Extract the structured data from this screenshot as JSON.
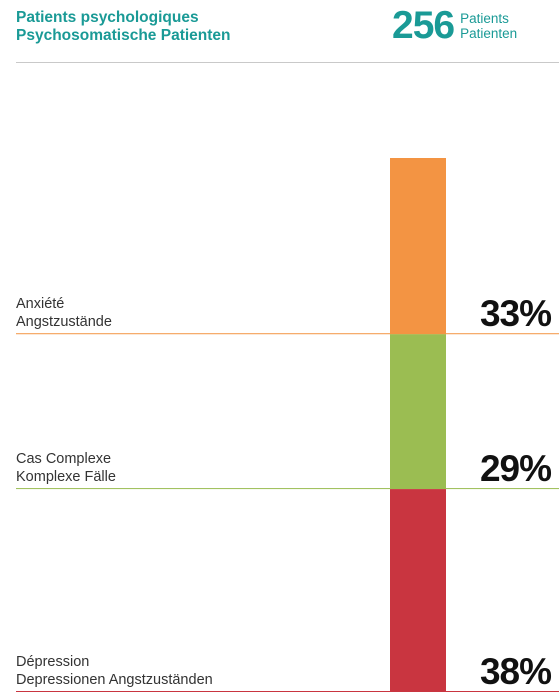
{
  "header": {
    "title_line1": "Patients psychologiques",
    "title_line2": "Psychosomatische Patienten",
    "count": "256",
    "count_label1": "Patients",
    "count_label2": "Patienten",
    "accent_color": "#1a9a96"
  },
  "chart_data": {
    "type": "bar",
    "stacked": true,
    "total_patients": 256,
    "categories": [
      {
        "label1": "Anxiété",
        "label2": "Angstzustände",
        "value": 33,
        "value_label": "33%",
        "color": "#f39443"
      },
      {
        "label1": "Cas Complexe",
        "label2": "Komplexe Fälle",
        "value": 29,
        "value_label": "29%",
        "color": "#9bbd52"
      },
      {
        "label1": "Dépression",
        "label2": "Depressionen Angstzuständen",
        "value": 38,
        "value_label": "38%",
        "color": "#c93540"
      }
    ]
  }
}
